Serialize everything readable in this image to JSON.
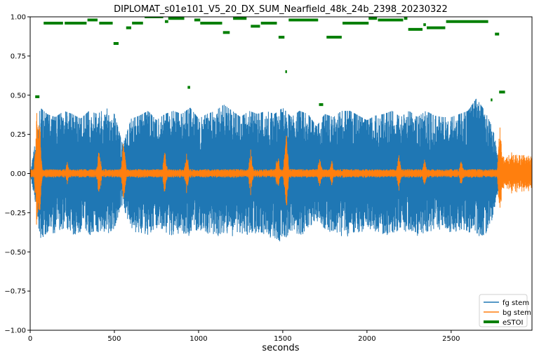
{
  "chart_data": {
    "type": "line",
    "title": "DIPLOMAT_s01e101_V5_20_DX_SUM_Nearfield_48k_24b_2398_20230322",
    "xlabel": "seconds",
    "ylabel": "",
    "xlim": [
      0,
      2980
    ],
    "ylim": [
      -1.0,
      1.0
    ],
    "x_ticks": [
      0,
      500,
      1000,
      1500,
      2000,
      2500
    ],
    "x_tick_labels": [
      "0",
      "500",
      "1000",
      "1500",
      "2000",
      "2500"
    ],
    "y_ticks": [
      -1.0,
      -0.75,
      -0.5,
      -0.25,
      0.0,
      0.25,
      0.5,
      0.75,
      1.0
    ],
    "y_tick_labels": [
      "−1.00",
      "−0.75",
      "−0.50",
      "−0.25",
      "0.00",
      "0.25",
      "0.50",
      "0.75",
      "1.00"
    ],
    "grid": false,
    "legend_position": "bottom-right",
    "series": [
      {
        "name": "fg stem",
        "color": "#1f77b4",
        "kind": "waveform",
        "envelope": {
          "x": [
            0,
            30,
            60,
            100,
            150,
            200,
            250,
            300,
            350,
            400,
            450,
            500,
            550,
            600,
            650,
            700,
            750,
            800,
            850,
            900,
            950,
            1000,
            1050,
            1100,
            1150,
            1200,
            1250,
            1300,
            1350,
            1400,
            1450,
            1500,
            1550,
            1600,
            1650,
            1700,
            1750,
            1800,
            1850,
            1900,
            1950,
            2000,
            2050,
            2100,
            2150,
            2200,
            2250,
            2300,
            2350,
            2400,
            2450,
            2500,
            2550,
            2600,
            2650,
            2700,
            2750,
            2800
          ],
          "upper": [
            0.0,
            0.2,
            0.42,
            0.38,
            0.36,
            0.4,
            0.38,
            0.35,
            0.4,
            0.38,
            0.42,
            0.38,
            0.18,
            0.35,
            0.37,
            0.4,
            0.34,
            0.38,
            0.4,
            0.38,
            0.42,
            0.35,
            0.38,
            0.4,
            0.44,
            0.4,
            0.36,
            0.4,
            0.38,
            0.4,
            0.38,
            0.42,
            0.36,
            0.4,
            0.38,
            0.3,
            0.38,
            0.36,
            0.4,
            0.4,
            0.37,
            0.34,
            0.37,
            0.38,
            0.4,
            0.36,
            0.4,
            0.36,
            0.4,
            0.37,
            0.36,
            0.36,
            0.38,
            0.4,
            0.48,
            0.4,
            0.28,
            0.0
          ],
          "lower": [
            0.0,
            -0.2,
            -0.42,
            -0.4,
            -0.38,
            -0.36,
            -0.4,
            -0.38,
            -0.4,
            -0.38,
            -0.4,
            -0.36,
            -0.2,
            -0.37,
            -0.38,
            -0.4,
            -0.36,
            -0.38,
            -0.4,
            -0.38,
            -0.4,
            -0.36,
            -0.38,
            -0.42,
            -0.38,
            -0.4,
            -0.38,
            -0.4,
            -0.38,
            -0.4,
            -0.42,
            -0.44,
            -0.38,
            -0.4,
            -0.38,
            -0.3,
            -0.36,
            -0.38,
            -0.4,
            -0.42,
            -0.38,
            -0.36,
            -0.37,
            -0.4,
            -0.38,
            -0.36,
            -0.38,
            -0.4,
            -0.38,
            -0.36,
            -0.36,
            -0.38,
            -0.37,
            -0.38,
            -0.4,
            -0.4,
            -0.28,
            0.0
          ]
        }
      },
      {
        "name": "bg stem",
        "color": "#ff7f0e",
        "kind": "waveform",
        "baseline": 0.02,
        "bursts": [
          {
            "x": 40,
            "amp": 0.48
          },
          {
            "x": 55,
            "amp": 0.48
          },
          {
            "x": 220,
            "amp": 0.08
          },
          {
            "x": 410,
            "amp": 0.18
          },
          {
            "x": 555,
            "amp": 0.24
          },
          {
            "x": 800,
            "amp": 0.15
          },
          {
            "x": 930,
            "amp": 0.16
          },
          {
            "x": 1310,
            "amp": 0.16
          },
          {
            "x": 1470,
            "amp": 0.14
          },
          {
            "x": 1520,
            "amp": 0.32
          },
          {
            "x": 1720,
            "amp": 0.12
          },
          {
            "x": 1790,
            "amp": 0.1
          },
          {
            "x": 2190,
            "amp": 0.13
          },
          {
            "x": 2340,
            "amp": 0.12
          },
          {
            "x": 2560,
            "amp": 0.1
          },
          {
            "x": 2790,
            "amp": 0.34
          },
          {
            "x": 2860,
            "amp": 0.16
          },
          {
            "x": 2930,
            "amp": 0.14
          }
        ]
      },
      {
        "name": "eSTOI",
        "color": "#007f00",
        "kind": "segments",
        "segments": [
          {
            "x0": 30,
            "x1": 55,
            "y": 0.49
          },
          {
            "x0": 80,
            "x1": 195,
            "y": 0.96
          },
          {
            "x0": 205,
            "x1": 335,
            "y": 0.96
          },
          {
            "x0": 340,
            "x1": 400,
            "y": 0.98
          },
          {
            "x0": 410,
            "x1": 490,
            "y": 0.96
          },
          {
            "x0": 495,
            "x1": 525,
            "y": 0.83
          },
          {
            "x0": 570,
            "x1": 600,
            "y": 0.93
          },
          {
            "x0": 605,
            "x1": 670,
            "y": 0.96
          },
          {
            "x0": 680,
            "x1": 790,
            "y": 1.0
          },
          {
            "x0": 800,
            "x1": 820,
            "y": 0.97
          },
          {
            "x0": 820,
            "x1": 915,
            "y": 0.99
          },
          {
            "x0": 935,
            "x1": 950,
            "y": 0.55
          },
          {
            "x0": 975,
            "x1": 1010,
            "y": 0.98
          },
          {
            "x0": 1010,
            "x1": 1140,
            "y": 0.96
          },
          {
            "x0": 1145,
            "x1": 1185,
            "y": 0.9
          },
          {
            "x0": 1205,
            "x1": 1285,
            "y": 0.99
          },
          {
            "x0": 1310,
            "x1": 1365,
            "y": 0.94
          },
          {
            "x0": 1370,
            "x1": 1465,
            "y": 0.96
          },
          {
            "x0": 1475,
            "x1": 1510,
            "y": 0.87
          },
          {
            "x0": 1515,
            "x1": 1525,
            "y": 0.65
          },
          {
            "x0": 1535,
            "x1": 1710,
            "y": 0.98
          },
          {
            "x0": 1715,
            "x1": 1740,
            "y": 0.44
          },
          {
            "x0": 1760,
            "x1": 1850,
            "y": 0.87
          },
          {
            "x0": 1855,
            "x1": 2010,
            "y": 0.96
          },
          {
            "x0": 2010,
            "x1": 2060,
            "y": 0.99
          },
          {
            "x0": 2065,
            "x1": 2215,
            "y": 0.98
          },
          {
            "x0": 2220,
            "x1": 2240,
            "y": 0.99
          },
          {
            "x0": 2245,
            "x1": 2330,
            "y": 0.92
          },
          {
            "x0": 2335,
            "x1": 2350,
            "y": 0.95
          },
          {
            "x0": 2355,
            "x1": 2465,
            "y": 0.93
          },
          {
            "x0": 2470,
            "x1": 2720,
            "y": 0.97
          },
          {
            "x0": 2735,
            "x1": 2745,
            "y": 0.47
          },
          {
            "x0": 2760,
            "x1": 2785,
            "y": 0.89
          },
          {
            "x0": 2785,
            "x1": 2820,
            "y": 0.52
          }
        ]
      }
    ]
  }
}
